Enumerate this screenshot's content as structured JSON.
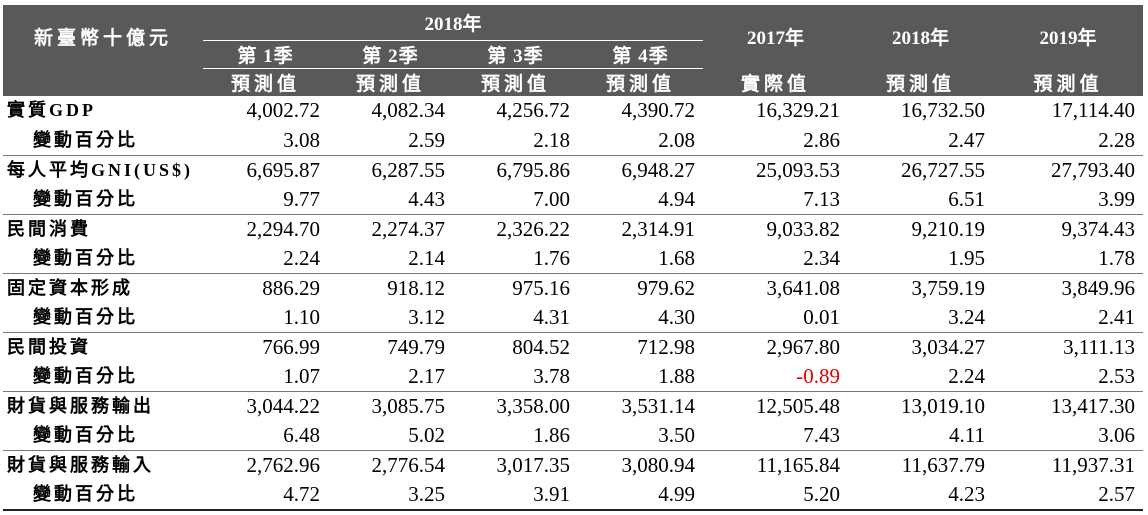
{
  "header": {
    "unit": "新臺幣十億元",
    "group": "2018年",
    "quarters": [
      "第 1季",
      "第 2季",
      "第 3季",
      "第 4季"
    ],
    "years": [
      "2017年",
      "2018年",
      "2019年"
    ],
    "subheaders": [
      "預測值",
      "預測值",
      "預測值",
      "預測值",
      "實際值",
      "預測值",
      "預測值"
    ]
  },
  "rows": [
    {
      "label": "實質GDP",
      "values": [
        "4,002.72",
        "4,082.34",
        "4,256.72",
        "4,390.72",
        "16,329.21",
        "16,732.50",
        "17,114.40"
      ]
    },
    {
      "label": "變動百分比",
      "values": [
        "3.08",
        "2.59",
        "2.18",
        "2.08",
        "2.86",
        "2.47",
        "2.28"
      ]
    },
    {
      "label": "每人平均GNI(US$)",
      "values": [
        "6,695.87",
        "6,287.55",
        "6,795.86",
        "6,948.27",
        "25,093.53",
        "26,727.55",
        "27,793.40"
      ]
    },
    {
      "label": "變動百分比",
      "values": [
        "9.77",
        "4.43",
        "7.00",
        "4.94",
        "7.13",
        "6.51",
        "3.99"
      ]
    },
    {
      "label": "民間消費",
      "values": [
        "2,294.70",
        "2,274.37",
        "2,326.22",
        "2,314.91",
        "9,033.82",
        "9,210.19",
        "9,374.43"
      ]
    },
    {
      "label": "變動百分比",
      "values": [
        "2.24",
        "2.14",
        "1.76",
        "1.68",
        "2.34",
        "1.95",
        "1.78"
      ]
    },
    {
      "label": "固定資本形成",
      "values": [
        "886.29",
        "918.12",
        "975.16",
        "979.62",
        "3,641.08",
        "3,759.19",
        "3,849.96"
      ]
    },
    {
      "label": "變動百分比",
      "values": [
        "1.10",
        "3.12",
        "4.31",
        "4.30",
        "0.01",
        "3.24",
        "2.41"
      ]
    },
    {
      "label": "民間投資",
      "values": [
        "766.99",
        "749.79",
        "804.52",
        "712.98",
        "2,967.80",
        "3,034.27",
        "3,111.13"
      ]
    },
    {
      "label": "變動百分比",
      "values": [
        "1.07",
        "2.17",
        "3.78",
        "1.88",
        "-0.89",
        "2.24",
        "2.53"
      ]
    },
    {
      "label": "財貨與服務輸出",
      "values": [
        "3,044.22",
        "3,085.75",
        "3,358.00",
        "3,531.14",
        "12,505.48",
        "13,019.10",
        "13,417.30"
      ]
    },
    {
      "label": "變動百分比",
      "values": [
        "6.48",
        "5.02",
        "1.86",
        "3.50",
        "7.43",
        "4.11",
        "3.06"
      ]
    },
    {
      "label": "財貨與服務輸入",
      "values": [
        "2,762.96",
        "2,776.54",
        "3,017.35",
        "3,080.94",
        "11,165.84",
        "11,637.79",
        "11,937.31"
      ]
    },
    {
      "label": "變動百分比",
      "values": [
        "4.72",
        "3.25",
        "3.91",
        "4.99",
        "5.20",
        "4.23",
        "2.57"
      ]
    }
  ]
}
